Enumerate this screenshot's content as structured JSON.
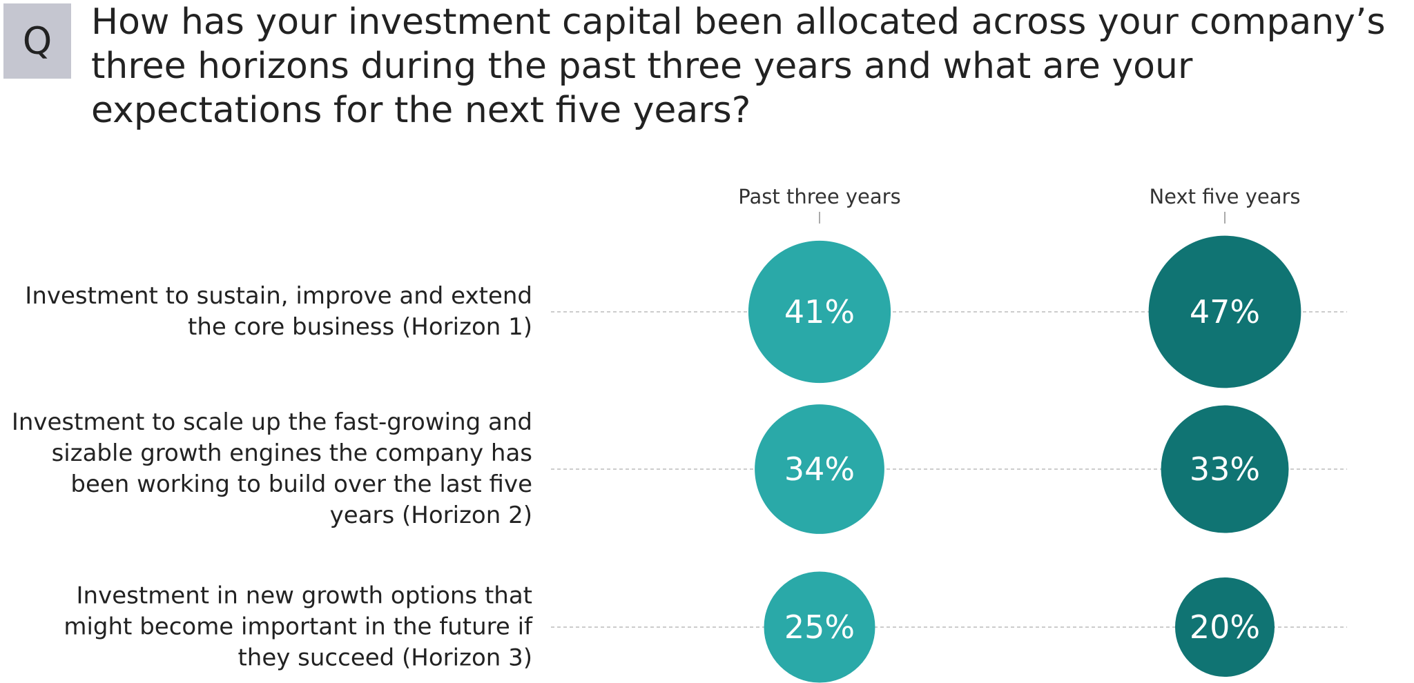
{
  "chart_data": {
    "type": "bubble",
    "badge": "Q",
    "title": "How has your investment capital been allocated across your company’s three horizons during the past three years and what are your expectations for the next five years?",
    "categories": [
      "Investment to sustain, improve and extend the core business (Horizon 1)",
      "Investment to scale up the fast-growing and sizable growth engines the company has been working to build over the last five years (Horizon 2)",
      "Investment in new growth options that might become important in the future if they succeed (Horizon 3)"
    ],
    "series": [
      {
        "name": "Past three years",
        "color": "#2aa9a8",
        "values": [
          41,
          34,
          25
        ],
        "value_labels": [
          "41%",
          "34%",
          "25%"
        ]
      },
      {
        "name": "Next five years",
        "color": "#107473",
        "values": [
          47,
          33,
          20
        ],
        "value_labels": [
          "47%",
          "33%",
          "20%"
        ]
      }
    ]
  }
}
